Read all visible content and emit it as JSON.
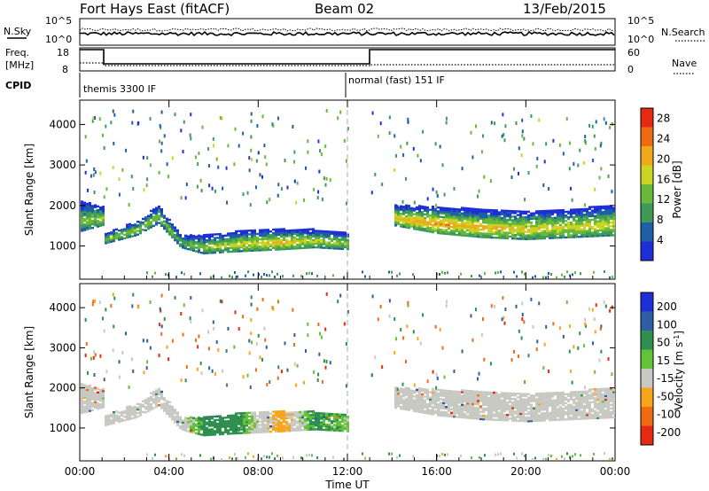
{
  "header": {
    "radar": "Fort Hays East (fitACF)",
    "beam": "Beam 02",
    "date": "13/Feb/2015"
  },
  "noise_panel": {
    "left_label": "N.Sky",
    "left_ticks": [
      "10^5",
      "10^0"
    ],
    "right_label": "N.Search",
    "right_ticks": [
      "10^5",
      "10^0"
    ]
  },
  "freq_panel": {
    "left_label_1": "Freq.",
    "left_label_2": "[MHz]",
    "left_ticks": [
      "18",
      "8"
    ],
    "right_label": "Nave",
    "right_ticks": [
      "60",
      "0"
    ]
  },
  "cpid": {
    "label": "CPID",
    "modes": [
      "themis 3300 IF",
      "normal (fast) 151 IF"
    ]
  },
  "x_axis": {
    "label": "Time UT",
    "ticks": [
      "00:00",
      "04:00",
      "08:00",
      "12:00",
      "16:00",
      "20:00",
      "00:00"
    ]
  },
  "colors": {
    "power": [
      "#1f2fd8",
      "#1e5fa6",
      "#3f9a5a",
      "#67b83b",
      "#c9d423",
      "#f0a81d",
      "#ee6b14",
      "#e62a12"
    ],
    "velocity": [
      "#e62a12",
      "#ee6b14",
      "#f7a51c",
      "#c9c9c3",
      "#63c23a",
      "#2f8f4e",
      "#2e5fa6",
      "#1f2fd8"
    ]
  },
  "chart_data": [
    {
      "type": "heatmap",
      "title": "Power",
      "xlabel": "Time UT",
      "ylabel": "Slant Range [km]",
      "xlim_hours": [
        0,
        24
      ],
      "ylim_km": [
        180,
        4600
      ],
      "y_ticks": [
        "1000",
        "2000",
        "3000",
        "4000"
      ],
      "colorbar": {
        "label": "Power [dB]",
        "ticks": [
          "4",
          "8",
          "12",
          "16",
          "20",
          "24",
          "28"
        ],
        "range": [
          0,
          30
        ]
      },
      "backscatter_band": {
        "time_hours": [
          0.0,
          1.0,
          1.1,
          2.5,
          3.5,
          4.5,
          5.5,
          7.0,
          9.0,
          10.5,
          12.0,
          13.0,
          14.0,
          16.0,
          18.0,
          20.0,
          22.0,
          24.0
        ],
        "lower_km": [
          1350,
          1500,
          1050,
          1250,
          1550,
          950,
          800,
          850,
          900,
          950,
          900,
          null,
          1500,
          1300,
          1200,
          1150,
          1200,
          1250
        ],
        "upper_km": [
          2100,
          1950,
          1300,
          1600,
          2000,
          1250,
          1250,
          1350,
          1400,
          1400,
          1300,
          null,
          2000,
          1950,
          1900,
          1850,
          1900,
          2000
        ],
        "peak_power_db": [
          14,
          16,
          14,
          15,
          14,
          13,
          15,
          18,
          20,
          17,
          15,
          null,
          20,
          22,
          20,
          19,
          18,
          18
        ]
      }
    },
    {
      "type": "heatmap",
      "title": "Velocity",
      "xlabel": "Time UT",
      "ylabel": "Slant Range [km]",
      "xlim_hours": [
        0,
        24
      ],
      "ylim_km": [
        180,
        4600
      ],
      "y_ticks": [
        "1000",
        "2000",
        "3000",
        "4000"
      ],
      "colorbar": {
        "label": "Velocity [m s^-1]",
        "ticks": [
          "200",
          "100",
          "50",
          "15",
          "-15",
          "-50",
          "-100",
          "-200"
        ]
      },
      "dominant_velocity_ms": [
        0,
        0,
        0,
        0,
        0,
        0,
        40,
        40,
        -30,
        40,
        20,
        null,
        0,
        0,
        0,
        0,
        0,
        0
      ]
    }
  ]
}
